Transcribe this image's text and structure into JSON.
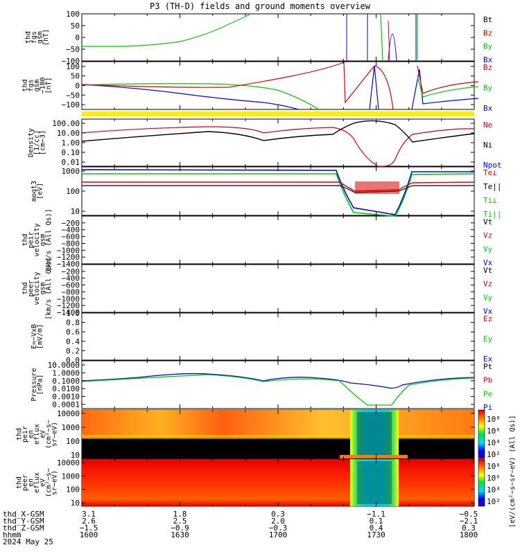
{
  "title": "P3 (TH-D) fields and ground moments overview",
  "colors": {
    "black": "#000000",
    "red": "#d40000",
    "green": "#00c800",
    "blue": "#0000e0",
    "yellow": "#ffee00",
    "orange": "#ff8000"
  },
  "chart_data": [
    {
      "type": "line",
      "name": "fgs-gsm-1",
      "ylabel": [
        "thd",
        "fgs",
        "gsm",
        "[nT]"
      ],
      "ylim": [
        -100,
        100
      ],
      "yticks": [
        "100",
        "50",
        "0",
        "−50",
        "−100"
      ],
      "legend": [
        {
          "text": "Bt",
          "color": "#000000"
        },
        {
          "text": "Bz",
          "color": "#d40000"
        },
        {
          "text": "By",
          "color": "#00c800"
        },
        {
          "text": "Bx",
          "color": "#0000e0"
        }
      ]
    },
    {
      "type": "line",
      "name": "fgs-gsm-2",
      "ylabel": [
        "thd",
        "fgs",
        "gsm",
        "−180",
        "[nT]"
      ],
      "ylim": [
        -125,
        125
      ],
      "yticks": [
        "100",
        "50",
        "0",
        "−50",
        "−100"
      ],
      "legend": [
        {
          "text": "Bz",
          "color": "#d40000"
        },
        {
          "text": "By",
          "color": "#00c800"
        },
        {
          "text": "Bx",
          "color": "#0000e0"
        }
      ]
    },
    {
      "type": "line",
      "name": "density",
      "scale": "log",
      "ylabel": [
        "Density",
        "[1/cc]",
        "[cm−3]"
      ],
      "yticks": [
        "100.00",
        "10.00",
        "1.00",
        "0.10",
        "0.01"
      ],
      "legend": [
        {
          "text": "Ne",
          "color": "#d40000"
        },
        {
          "text": "Ni",
          "color": "#000000"
        },
        {
          "text": "Npot",
          "color": "#0000e0"
        }
      ]
    },
    {
      "type": "line",
      "name": "temperature",
      "scale": "log",
      "ylabel": [
        "moqt3",
        "[eV]"
      ],
      "yticks": [
        "1000",
        "100",
        "10"
      ],
      "legend": [
        {
          "text": "Te⊥",
          "color": "#d40000"
        },
        {
          "text": "Te||",
          "color": "#000000"
        },
        {
          "text": "Ti⊥",
          "color": "#00c800"
        },
        {
          "text": "Ti||",
          "color": "#00c800"
        }
      ]
    },
    {
      "type": "line",
      "name": "peir-velocity",
      "ylabel": [
        "thd",
        "peir",
        "velocity",
        "gsm",
        "[km/s (All Qs)]"
      ],
      "ylim": [
        -1400,
        0
      ],
      "yticks": [
        "−200",
        "−400",
        "−600",
        "−800",
        "−1000",
        "−1200",
        "−1400"
      ],
      "legend": [
        {
          "text": "Vt",
          "color": "#000000"
        },
        {
          "text": "Vz",
          "color": "#d40000"
        },
        {
          "text": "Vy",
          "color": "#00c800"
        },
        {
          "text": "Vx",
          "color": "#0000e0"
        }
      ]
    },
    {
      "type": "line",
      "name": "peer-velocity",
      "ylabel": [
        "thd",
        "peer",
        "velocity",
        "gsm",
        "[km/s (All Qs)]"
      ],
      "ylim": [
        -1400,
        0
      ],
      "yticks": [
        "−200",
        "−400",
        "−600",
        "−800",
        "−1000",
        "−1200",
        "−1400"
      ],
      "legend": [
        {
          "text": "Vt",
          "color": "#000000"
        },
        {
          "text": "Vz",
          "color": "#d40000"
        },
        {
          "text": "Vy",
          "color": "#00c800"
        },
        {
          "text": "Vx",
          "color": "#0000e0"
        }
      ]
    },
    {
      "type": "line",
      "name": "efield",
      "ylabel": [
        "E=−VxB",
        "[mV/m]"
      ],
      "ylim": [
        0,
        1
      ],
      "yticks": [
        "1.0",
        "0.8",
        "0.6",
        "0.4",
        "0.2",
        "0.0"
      ],
      "legend": [
        {
          "text": "Ez",
          "color": "#d40000"
        },
        {
          "text": "Ey",
          "color": "#00c800"
        },
        {
          "text": "Ex",
          "color": "#0000e0"
        }
      ]
    },
    {
      "type": "line",
      "name": "pressure",
      "scale": "log",
      "ylabel": [
        "Pressure",
        "[nPa]"
      ],
      "yticks": [
        "10.0000",
        "1.0000",
        "0.1000",
        "0.0100",
        "0.0010",
        "0.0001"
      ],
      "legend": [
        {
          "text": "Pt",
          "color": "#000000"
        },
        {
          "text": "Pb",
          "color": "#d40000"
        },
        {
          "text": "Pe",
          "color": "#00c800"
        },
        {
          "text": "Pi",
          "color": "#0000e0"
        }
      ]
    },
    {
      "type": "heatmap",
      "name": "peir-eflux",
      "ylabel": [
        "thd",
        "peir",
        "en",
        "eflux",
        "eV",
        "(cm²−s−",
        "sr−eV)"
      ],
      "yticks": [
        "10000",
        "1000",
        "100",
        "10"
      ]
    },
    {
      "type": "heatmap",
      "name": "peer-eflux",
      "ylabel": [
        "thd",
        "peer",
        "en",
        "eflux",
        "eV",
        "(cm²−s−",
        "sr−eV)"
      ],
      "yticks": [
        "10000",
        "1000",
        "100",
        "10"
      ]
    }
  ],
  "colorbar": {
    "label": "[eV/(cm²−s−sr−eV) (All Qs)]",
    "upper_ticks": [
      "10⁸",
      "10⁶",
      "10⁴",
      "10²"
    ],
    "lower_ticks": [
      "10⁸",
      "10⁶",
      "10⁴",
      "10²"
    ]
  },
  "ephemeris": {
    "labels": [
      "thd_X-GSM",
      "thd_Y-GSM",
      "thd_Z-GSM",
      "hhmm",
      "2024 May 25"
    ],
    "columns": [
      {
        "x": "3.1",
        "y": "2.6",
        "z": "−1.5",
        "t": "1600"
      },
      {
        "x": "1.8",
        "y": "2.5",
        "z": "−0.9",
        "t": "1630"
      },
      {
        "x": "0.3",
        "y": "2.0",
        "z": "−0.3",
        "t": "1700"
      },
      {
        "x": "−1.1",
        "y": "0.1",
        "z": "0.4",
        "t": "1730"
      },
      {
        "x": "−0.5",
        "y": "−2.1",
        "z": "0.3",
        "t": "1800"
      }
    ]
  }
}
